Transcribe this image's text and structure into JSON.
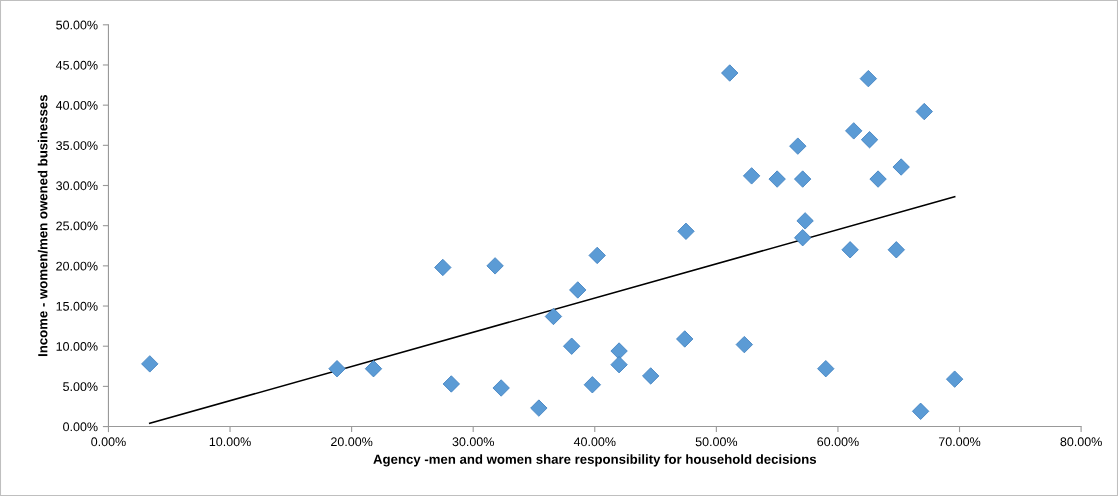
{
  "chart_data": {
    "type": "scatter",
    "xlabel": "Agency -men and women share responsibility for household decisions",
    "ylabel": "Income - women/men owened businesses",
    "marker": "diamond",
    "grid": false,
    "xlim": [
      0,
      80
    ],
    "ylim": [
      0,
      50
    ],
    "xticks": [
      {
        "value": 0,
        "label": "0.00%"
      },
      {
        "value": 10,
        "label": "10.00%"
      },
      {
        "value": 20,
        "label": "20.00%"
      },
      {
        "value": 30,
        "label": "30.00%"
      },
      {
        "value": 40,
        "label": "40.00%"
      },
      {
        "value": 50,
        "label": "50.00%"
      },
      {
        "value": 60,
        "label": "60.00%"
      },
      {
        "value": 70,
        "label": "70.00%"
      },
      {
        "value": 80,
        "label": "80.00%"
      }
    ],
    "yticks": [
      {
        "value": 0,
        "label": "0.00%"
      },
      {
        "value": 5,
        "label": "5.00%"
      },
      {
        "value": 10,
        "label": "10.00%"
      },
      {
        "value": 15,
        "label": "15.00%"
      },
      {
        "value": 20,
        "label": "20.00%"
      },
      {
        "value": 25,
        "label": "25.00%"
      },
      {
        "value": 30,
        "label": "30.00%"
      },
      {
        "value": 35,
        "label": "35.00%"
      },
      {
        "value": 40,
        "label": "40.00%"
      },
      {
        "value": 45,
        "label": "45.00%"
      },
      {
        "value": 50,
        "label": "50.00%"
      }
    ],
    "series": [
      {
        "color": "#5b9bd5",
        "x": [
          3.4,
          18.8,
          21.8,
          27.5,
          28.2,
          31.8,
          32.3,
          35.4,
          36.6,
          38.1,
          38.6,
          39.8,
          40.2,
          42.0,
          42.0,
          44.6,
          47.4,
          47.5,
          51.1,
          52.3,
          52.9,
          55.0,
          56.7,
          57.1,
          57.3,
          57.1,
          59.0,
          61.0,
          61.3,
          62.5,
          62.6,
          63.3,
          64.8,
          65.2,
          66.8,
          67.1,
          69.6
        ],
        "values": [
          7.8,
          7.2,
          7.2,
          19.8,
          5.3,
          20.0,
          4.8,
          2.3,
          13.7,
          10.0,
          17.0,
          5.2,
          21.3,
          9.4,
          7.7,
          6.3,
          10.9,
          24.3,
          44.0,
          10.2,
          31.2,
          30.8,
          34.9,
          30.8,
          25.6,
          23.5,
          7.2,
          22.0,
          36.8,
          43.3,
          35.7,
          30.8,
          22.0,
          32.3,
          1.9,
          39.2,
          5.9
        ]
      },
      {
        "type": "line",
        "color": "#000000",
        "marker": "none",
        "x": [
          3.4,
          69.6
        ],
        "values": [
          0.4,
          28.6
        ]
      }
    ]
  }
}
